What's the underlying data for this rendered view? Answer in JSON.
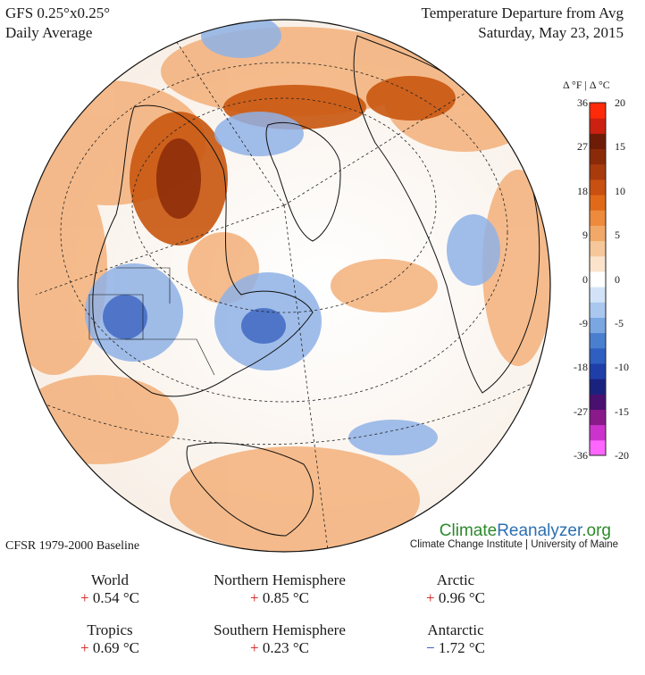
{
  "header": {
    "model": "GFS 0.25°x0.25°",
    "period": "Daily Average",
    "product": "Temperature Departure from Avg",
    "date": "Saturday, May 23, 2015"
  },
  "legend": {
    "units_label": "Δ °F  |  Δ °C",
    "fahrenheit_ticks": [
      "36",
      "27",
      "18",
      "9",
      "0",
      "-9",
      "-18",
      "-27",
      "-36"
    ],
    "celsius_ticks": [
      "20",
      "15",
      "10",
      "5",
      "0",
      "-5",
      "-10",
      "-15",
      "-20"
    ],
    "colors": [
      "#ff66ff",
      "#cc33cc",
      "#8a1a8a",
      "#4a1070",
      "#1a2280",
      "#1f3fa8",
      "#2f5fc0",
      "#4a7fd0",
      "#7aa6e2",
      "#aac8ef",
      "#d2e3f7",
      "#ffffff",
      "#fbe3cc",
      "#f6c79a",
      "#f2a868",
      "#ee8a3c",
      "#e06a1a",
      "#c85010",
      "#a83a0c",
      "#8a2a08",
      "#6e1c06",
      "#cc2010",
      "#ff2a0a"
    ]
  },
  "branding": {
    "site_part1": "Climate",
    "site_part2": "Reanalyzer",
    "site_part3": ".org",
    "institute": "Climate Change Institute | University of Maine"
  },
  "baseline": "CFSR 1979-2000 Baseline",
  "stats": [
    {
      "region": "World",
      "sign": "+",
      "value": "0.54 °C"
    },
    {
      "region": "Northern Hemisphere",
      "sign": "+",
      "value": "0.85 °C"
    },
    {
      "region": "Arctic",
      "sign": "+",
      "value": "0.96 °C"
    },
    {
      "region": "Tropics",
      "sign": "+",
      "value": "0.69 °C"
    },
    {
      "region": "Southern Hemisphere",
      "sign": "+",
      "value": "0.23 °C"
    },
    {
      "region": "Antarctic",
      "sign": "−",
      "value": "1.72 °C"
    }
  ]
}
